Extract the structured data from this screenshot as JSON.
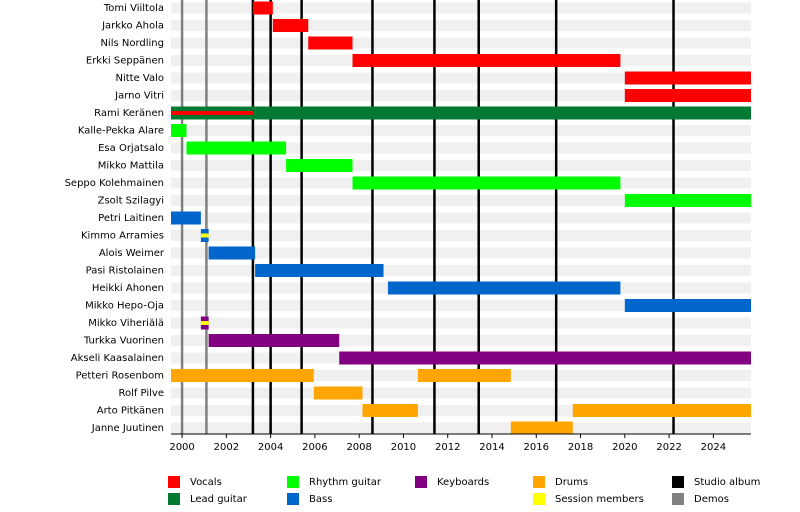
{
  "chart_data": {
    "type": "timeline",
    "xlim": [
      1999.5,
      2025.7
    ],
    "xticks": [
      2000,
      2002,
      2004,
      2006,
      2008,
      2010,
      2012,
      2014,
      2016,
      2018,
      2020,
      2022,
      2024
    ],
    "roles": [
      {
        "name": "Vocals",
        "color": "#ff0000"
      },
      {
        "name": "Lead guitar",
        "color": "#007a33"
      },
      {
        "name": "Rhythm guitar",
        "color": "#00ff00"
      },
      {
        "name": "Bass",
        "color": "#0066cc"
      },
      {
        "name": "Keyboards",
        "color": "#800080"
      },
      {
        "name": "Drums",
        "color": "#ffa500"
      },
      {
        "name": "Session members",
        "color": "#ffff00"
      }
    ],
    "events": [
      {
        "name": "Studio album",
        "color": "#000000",
        "values": [
          2003.2,
          2004.0,
          2005.4,
          2008.6,
          2011.4,
          2013.4,
          2016.9,
          2022.2
        ]
      },
      {
        "name": "Demos",
        "color": "#808080",
        "values": [
          2000.0,
          2001.1
        ]
      }
    ],
    "members": [
      {
        "name": "Tomi Viiltola",
        "bars": [
          {
            "role": 0,
            "start": 2003.2,
            "end": 2004.1
          }
        ]
      },
      {
        "name": "Jarkko Ahola",
        "bars": [
          {
            "role": 0,
            "start": 2004.1,
            "end": 2005.7
          }
        ]
      },
      {
        "name": "Nils Nordling",
        "bars": [
          {
            "role": 0,
            "start": 2005.7,
            "end": 2007.7
          }
        ]
      },
      {
        "name": "Erkki Seppänen",
        "bars": [
          {
            "role": 0,
            "start": 2007.7,
            "end": 2019.8
          }
        ]
      },
      {
        "name": "Nitte Valo",
        "bars": [
          {
            "role": 0,
            "start": 2020.0,
            "end": 2025.7
          }
        ]
      },
      {
        "name": "Jarno Vitri",
        "bars": [
          {
            "role": 0,
            "start": 2020.0,
            "end": 2025.7
          }
        ]
      },
      {
        "name": "Rami Keränen",
        "bars": [
          {
            "role": 1,
            "start": 1999.5,
            "end": 2025.7
          },
          {
            "role": 0,
            "start": 1999.5,
            "end": 2003.2,
            "thin": true
          }
        ]
      },
      {
        "name": "Kalle-Pekka Alare",
        "bars": [
          {
            "role": 2,
            "start": 1999.5,
            "end": 2000.2
          }
        ]
      },
      {
        "name": "Esa Orjatsalo",
        "bars": [
          {
            "role": 2,
            "start": 2000.2,
            "end": 2004.7
          }
        ]
      },
      {
        "name": "Mikko Mattila",
        "bars": [
          {
            "role": 2,
            "start": 2004.7,
            "end": 2007.7
          }
        ]
      },
      {
        "name": "Seppo Kolehmainen",
        "bars": [
          {
            "role": 2,
            "start": 2007.7,
            "end": 2019.8
          }
        ]
      },
      {
        "name": "Zsolt Szilagyi",
        "bars": [
          {
            "role": 2,
            "start": 2020.0,
            "end": 2025.7
          }
        ]
      },
      {
        "name": "Petri Laitinen",
        "bars": [
          {
            "role": 3,
            "start": 1999.5,
            "end": 2000.85
          }
        ]
      },
      {
        "name": "Kimmo Arramies",
        "bars": [
          {
            "role": 3,
            "start": 2000.85,
            "end": 2001.2
          },
          {
            "role": 6,
            "start": 2000.85,
            "end": 2001.2,
            "thin": true
          }
        ]
      },
      {
        "name": "Alois Weimer",
        "bars": [
          {
            "role": 3,
            "start": 2001.2,
            "end": 2003.3
          }
        ]
      },
      {
        "name": "Pasi Ristolainen",
        "bars": [
          {
            "role": 3,
            "start": 2003.3,
            "end": 2009.1
          }
        ]
      },
      {
        "name": "Heikki Ahonen",
        "bars": [
          {
            "role": 3,
            "start": 2009.3,
            "end": 2019.8
          }
        ]
      },
      {
        "name": "Mikko Hepo-Oja",
        "bars": [
          {
            "role": 3,
            "start": 2020.0,
            "end": 2025.7
          }
        ]
      },
      {
        "name": "Mikko Viheriälä",
        "bars": [
          {
            "role": 4,
            "start": 2000.85,
            "end": 2001.2
          },
          {
            "role": 6,
            "start": 2000.85,
            "end": 2001.2,
            "thin": true
          }
        ]
      },
      {
        "name": "Turkka Vuorinen",
        "bars": [
          {
            "role": 4,
            "start": 2001.2,
            "end": 2007.1
          }
        ]
      },
      {
        "name": "Akseli Kaasalainen",
        "bars": [
          {
            "role": 4,
            "start": 2007.1,
            "end": 2025.7
          }
        ]
      },
      {
        "name": "Petteri Rosenbom",
        "bars": [
          {
            "role": 5,
            "start": 1999.5,
            "end": 2005.95
          },
          {
            "role": 5,
            "start": 2010.65,
            "end": 2014.85
          }
        ]
      },
      {
        "name": "Rolf Pilve",
        "bars": [
          {
            "role": 5,
            "start": 2005.95,
            "end": 2008.15
          }
        ]
      },
      {
        "name": "Arto Pitkänen",
        "bars": [
          {
            "role": 5,
            "start": 2008.15,
            "end": 2010.65
          },
          {
            "role": 5,
            "start": 2017.65,
            "end": 2025.7
          }
        ]
      },
      {
        "name": "Janne Juutinen",
        "bars": [
          {
            "role": 5,
            "start": 2014.85,
            "end": 2017.65
          }
        ]
      }
    ]
  }
}
